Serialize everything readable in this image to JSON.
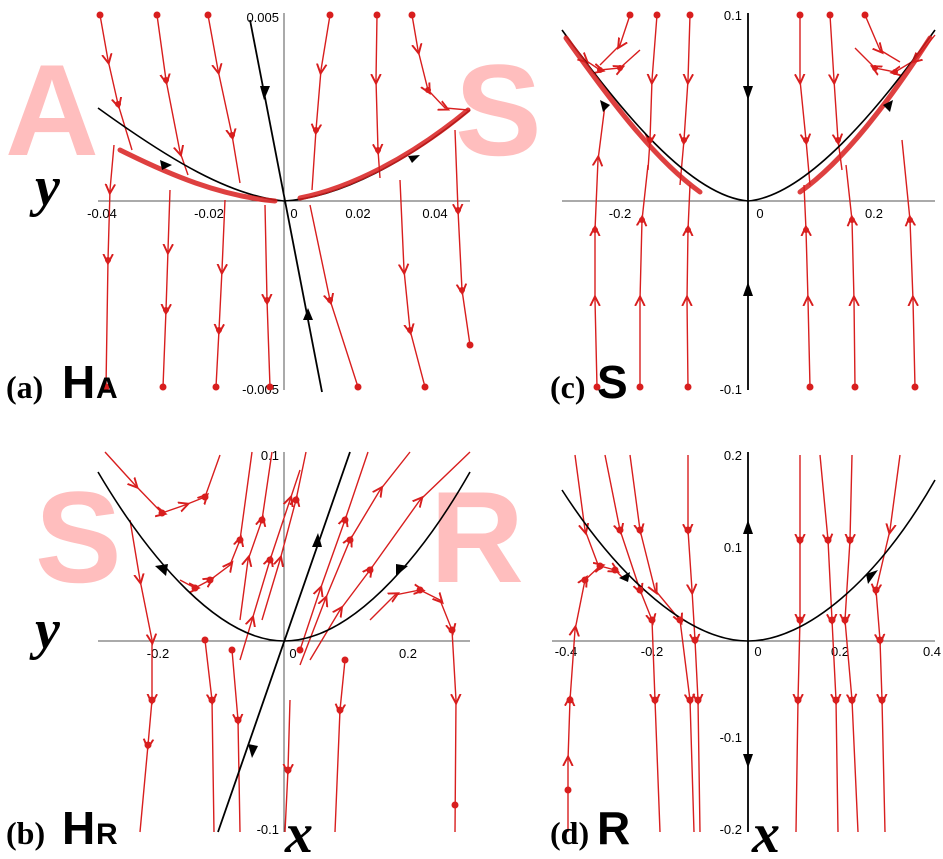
{
  "chart_data": [
    {
      "type": "phase-portrait",
      "panel": "(a)",
      "symbol": "H",
      "subscript": "A",
      "watermark": [
        "A",
        "S"
      ],
      "ylabel": "y",
      "xlim": [
        -0.05,
        0.05
      ],
      "ylim": [
        -0.005,
        0.005
      ],
      "x_ticks": [
        "-0.04",
        "-0.02",
        "0",
        "0.02",
        "0.04"
      ],
      "y_ticks": [
        "0.005",
        "-0.005"
      ]
    },
    {
      "type": "phase-portrait",
      "panel": "(b)",
      "symbol": "H",
      "subscript": "R",
      "watermark": [
        "S",
        "R"
      ],
      "ylabel": "y",
      "xlabel": "x",
      "xlim": [
        -0.3,
        0.3
      ],
      "ylim": [
        -0.1,
        0.1
      ],
      "x_ticks": [
        "-0.2",
        "0",
        "0.2"
      ],
      "y_ticks": [
        "0.1",
        "-0.1"
      ]
    },
    {
      "type": "phase-portrait",
      "panel": "(c)",
      "symbol": "S",
      "xlim": [
        -0.35,
        0.35
      ],
      "ylim": [
        -0.1,
        0.1
      ],
      "x_ticks": [
        "-0.2",
        "0",
        "0.2"
      ],
      "y_ticks": [
        "0.1",
        "-0.1"
      ]
    },
    {
      "type": "phase-portrait",
      "panel": "(d)",
      "symbol": "R",
      "xlabel": "x",
      "xlim": [
        -0.4,
        0.4
      ],
      "ylim": [
        -0.2,
        0.2
      ],
      "x_ticks": [
        "-0.4",
        "-0.2",
        "0",
        "0.2",
        "0.4"
      ],
      "y_ticks": [
        "0.2",
        "0.1",
        "-0.1",
        "-0.2"
      ]
    }
  ],
  "colors": {
    "trajectory": "#d81e1e",
    "manifold": "#000000",
    "watermark": "#ff8a8a"
  }
}
